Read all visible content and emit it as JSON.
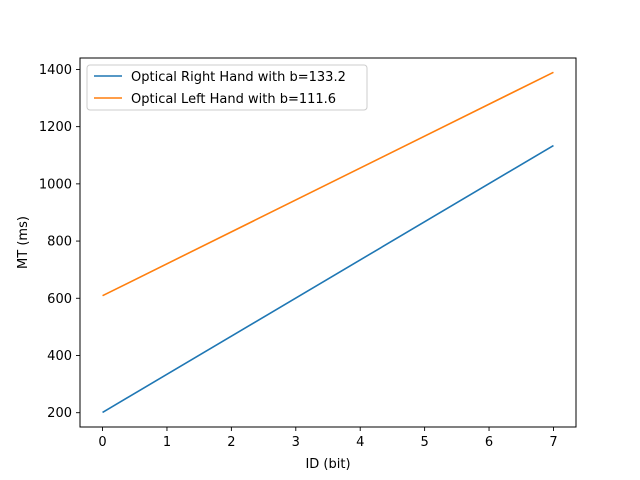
{
  "chart_data": {
    "type": "line",
    "title": "",
    "xlabel": "ID (bit)",
    "ylabel": "MT (ms)",
    "xlim": [
      -0.35,
      7.35
    ],
    "ylim": [
      150,
      1440
    ],
    "xticks": [
      0,
      1,
      2,
      3,
      4,
      5,
      6,
      7
    ],
    "yticks": [
      200,
      400,
      600,
      800,
      1000,
      1200,
      1400
    ],
    "grid": false,
    "legend_position": "upper-left",
    "series": [
      {
        "name": "Optical Right Hand with b=133.2",
        "color": "#1f77b4",
        "x": [
          0,
          7
        ],
        "y": [
          201,
          1134
        ]
      },
      {
        "name": "Optical Left Hand with b=111.6",
        "color": "#ff7f0e",
        "x": [
          0,
          7
        ],
        "y": [
          609,
          1390
        ]
      }
    ]
  }
}
